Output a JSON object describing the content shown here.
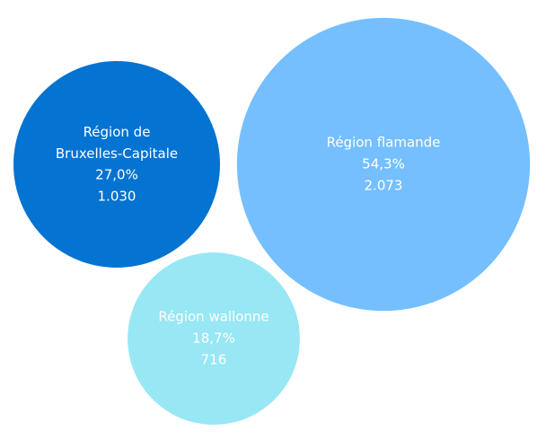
{
  "chart_data": {
    "type": "bubble",
    "categories": [
      "Région de Bruxelles-Capitale",
      "Région flamande",
      "Région wallonne"
    ],
    "values": [
      1030,
      2073,
      716
    ],
    "value_labels": [
      "1.030",
      "2.073",
      "716"
    ],
    "shares": [
      27.0,
      54.3,
      18.7
    ],
    "share_labels": [
      "27,0%",
      "54,3%",
      "18,7%"
    ],
    "colors": [
      "#0473d1",
      "#75bfff",
      "#98e7f4"
    ]
  }
}
